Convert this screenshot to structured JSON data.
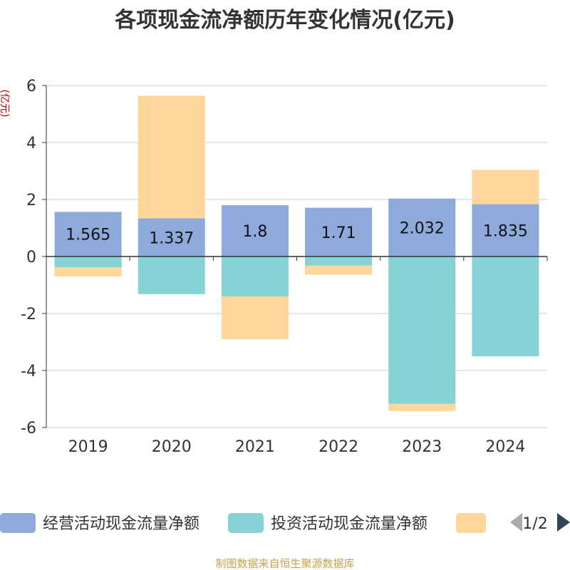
{
  "chart_data": {
    "type": "bar",
    "stacked": true,
    "title": "各项现金流净额历年变化情况(亿元)",
    "ylabel": "(亿元)",
    "categories": [
      "2019",
      "2020",
      "2021",
      "2022",
      "2023",
      "2024"
    ],
    "ylim": [
      -6,
      6
    ],
    "yticks": [
      6,
      4,
      2,
      0,
      -2,
      -4,
      -6
    ],
    "grid": true,
    "series": [
      {
        "name": "经营活动现金流量净额",
        "color": "#8eaadb",
        "values": [
          1.565,
          1.337,
          1.8,
          1.71,
          2.032,
          1.835
        ],
        "labels": [
          "1.565",
          "1.337",
          "1.8",
          "1.71",
          "2.032",
          "1.835"
        ]
      },
      {
        "name": "投资活动现金流量净额",
        "color": "#86d3d6",
        "values": [
          -0.38,
          -1.32,
          -1.4,
          -0.32,
          -5.17,
          -3.5
        ]
      },
      {
        "name": "",
        "color": "#fed699",
        "values": [
          -0.32,
          4.3,
          -1.5,
          -0.32,
          -0.25,
          1.2
        ]
      }
    ],
    "legend": {
      "position": "bottom",
      "page": "1/2"
    },
    "source": "制图数据来自恒生聚源数据库"
  }
}
